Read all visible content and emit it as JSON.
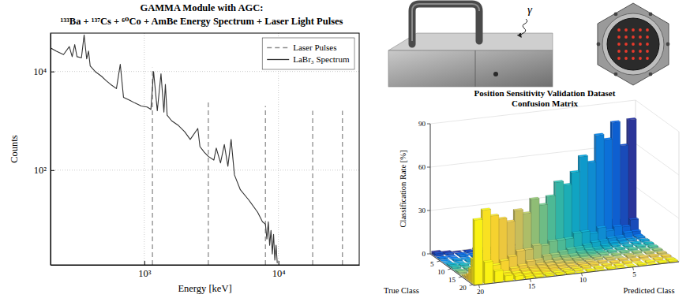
{
  "chart_data": [
    {
      "type": "line",
      "title": "GAMMA Module with AGC:",
      "subtitle": "¹³³Ba + ¹³⁷Cs + ⁶⁰Co + AmBe Energy Spectrum + Laser Light Pulses",
      "x_label": "Energy [keV]",
      "y_label": "Counts",
      "log": true,
      "grid": true,
      "legend": "upper right",
      "xlim": [
        200,
        40000
      ],
      "ylim": [
        1.2,
        60000
      ],
      "xticks": [
        {
          "value": 1000,
          "label": "10³"
        },
        {
          "value": 10000,
          "label": "10⁴"
        }
      ],
      "yticks": [
        {
          "value": 100,
          "label": "10²"
        },
        {
          "value": 10000,
          "label": "10⁴"
        }
      ],
      "series": [
        {
          "name": "Laser Pulses",
          "type": "stem",
          "color": "#8c8c8c",
          "line_style": "dashed",
          "x": [
            1150,
            3000,
            8000,
            18000,
            30000
          ],
          "values": [
            12000,
            2500,
            2000,
            1600,
            1600
          ]
        },
        {
          "name": "LaBr₃ Spectrum",
          "type": "line",
          "color": "#333333",
          "line_style": "solid",
          "x": [
            200,
            220,
            250,
            276,
            290,
            303,
            315,
            340,
            356,
            372,
            384,
            395,
            430,
            480,
            520,
            560,
            620,
            662,
            700,
            780,
            850,
            950,
            1050,
            1120,
            1173,
            1250,
            1332,
            1400,
            1436,
            1480,
            1600,
            1800,
            2000,
            2200,
            2505,
            2600,
            2800,
            3000,
            3300,
            3440,
            3700,
            3950,
            4200,
            4438,
            4700,
            5200,
            6000,
            7000,
            7600,
            8000,
            8200,
            8400,
            8600,
            8800,
            9000,
            9200,
            9400,
            9600,
            9800
          ],
          "values": [
            30000,
            26000,
            22000,
            32000,
            20000,
            35000,
            20000,
            19000,
            55000,
            18000,
            26000,
            13000,
            10000,
            8000,
            6500,
            5500,
            4500,
            14000,
            3000,
            2600,
            2300,
            2000,
            1900,
            1700,
            10000,
            1600,
            9000,
            1500,
            5500,
            1300,
            1000,
            800,
            600,
            420,
            700,
            300,
            230,
            190,
            160,
            280,
            140,
            330,
            120,
            420,
            80,
            40,
            25,
            14,
            9,
            8,
            4,
            9,
            3,
            6,
            2,
            5,
            1.5,
            3,
            1.3
          ]
        }
      ]
    },
    {
      "type": "bar3d",
      "title": "Position Sensitivity Validation Dataset",
      "subtitle": "Confusion Matrix",
      "x_label": "Predicted Class",
      "y_label": "True Class",
      "z_label": "Classification Rate [%]",
      "grid": true,
      "xlim": [
        0.5,
        20.5
      ],
      "ylim": [
        0.5,
        20.5
      ],
      "zlim": [
        0,
        90
      ],
      "xticks": [
        5,
        10,
        15,
        20
      ],
      "yticks": [
        5,
        10,
        15,
        20
      ],
      "zticks": [
        0,
        30,
        60,
        90
      ],
      "cells": [
        [
          78,
          9,
          3,
          1,
          1,
          0,
          1,
          0,
          0,
          1,
          0,
          0,
          1,
          0,
          0,
          1,
          0,
          0,
          1,
          2
        ],
        [
          10,
          62,
          11,
          4,
          2,
          1,
          0,
          1,
          1,
          0,
          1,
          0,
          0,
          1,
          0,
          0,
          1,
          0,
          1,
          2
        ],
        [
          3,
          7,
          80,
          5,
          1,
          0,
          1,
          0,
          0,
          1,
          0,
          0,
          0,
          1,
          0,
          0,
          0,
          1,
          0,
          0
        ],
        [
          1,
          4,
          9,
          70,
          8,
          2,
          1,
          0,
          1,
          0,
          0,
          1,
          0,
          0,
          1,
          0,
          0,
          1,
          0,
          1
        ],
        [
          1,
          1,
          3,
          8,
          75,
          6,
          2,
          1,
          0,
          1,
          0,
          0,
          0,
          1,
          0,
          0,
          1,
          0,
          0,
          0
        ],
        [
          0,
          1,
          2,
          4,
          12,
          58,
          11,
          4,
          2,
          1,
          1,
          0,
          1,
          0,
          1,
          0,
          1,
          0,
          1,
          0
        ],
        [
          1,
          0,
          1,
          2,
          4,
          10,
          64,
          9,
          3,
          1,
          1,
          0,
          1,
          1,
          0,
          1,
          0,
          1,
          0,
          0
        ],
        [
          0,
          1,
          0,
          1,
          2,
          5,
          13,
          55,
          12,
          4,
          2,
          1,
          0,
          1,
          1,
          0,
          1,
          0,
          0,
          1
        ],
        [
          1,
          0,
          1,
          0,
          1,
          2,
          5,
          14,
          48,
          13,
          6,
          2,
          2,
          1,
          0,
          1,
          1,
          0,
          1,
          1
        ],
        [
          0,
          1,
          0,
          1,
          0,
          1,
          3,
          5,
          12,
          52,
          12,
          5,
          3,
          1,
          1,
          0,
          1,
          1,
          0,
          1
        ],
        [
          1,
          0,
          1,
          0,
          1,
          1,
          2,
          3,
          6,
          13,
          44,
          14,
          6,
          3,
          2,
          1,
          1,
          0,
          1,
          0
        ],
        [
          0,
          1,
          0,
          1,
          0,
          1,
          1,
          2,
          3,
          6,
          14,
          40,
          15,
          7,
          3,
          2,
          1,
          1,
          1,
          1
        ],
        [
          1,
          0,
          1,
          0,
          1,
          0,
          1,
          1,
          2,
          4,
          6,
          13,
          46,
          12,
          5,
          3,
          2,
          1,
          0,
          1
        ],
        [
          0,
          1,
          0,
          1,
          0,
          1,
          1,
          1,
          2,
          3,
          4,
          7,
          15,
          38,
          14,
          6,
          3,
          2,
          1,
          0
        ],
        [
          1,
          0,
          0,
          1,
          0,
          1,
          0,
          1,
          1,
          2,
          3,
          4,
          6,
          14,
          42,
          12,
          6,
          3,
          2,
          1
        ],
        [
          0,
          1,
          1,
          0,
          1,
          0,
          1,
          1,
          1,
          1,
          2,
          3,
          4,
          7,
          15,
          36,
          14,
          6,
          4,
          2
        ],
        [
          1,
          0,
          0,
          1,
          0,
          1,
          0,
          1,
          1,
          1,
          1,
          2,
          3,
          4,
          6,
          13,
          40,
          14,
          7,
          4
        ],
        [
          0,
          1,
          0,
          0,
          1,
          0,
          1,
          0,
          1,
          1,
          1,
          1,
          2,
          3,
          4,
          6,
          12,
          44,
          13,
          9
        ],
        [
          1,
          0,
          1,
          0,
          0,
          1,
          0,
          1,
          0,
          1,
          1,
          1,
          1,
          2,
          3,
          4,
          5,
          11,
          50,
          17
        ],
        [
          1,
          1,
          0,
          1,
          0,
          0,
          1,
          0,
          1,
          0,
          1,
          1,
          1,
          1,
          2,
          3,
          4,
          8,
          15,
          45
        ]
      ]
    }
  ],
  "photos": {
    "gamma_label": "γ"
  }
}
